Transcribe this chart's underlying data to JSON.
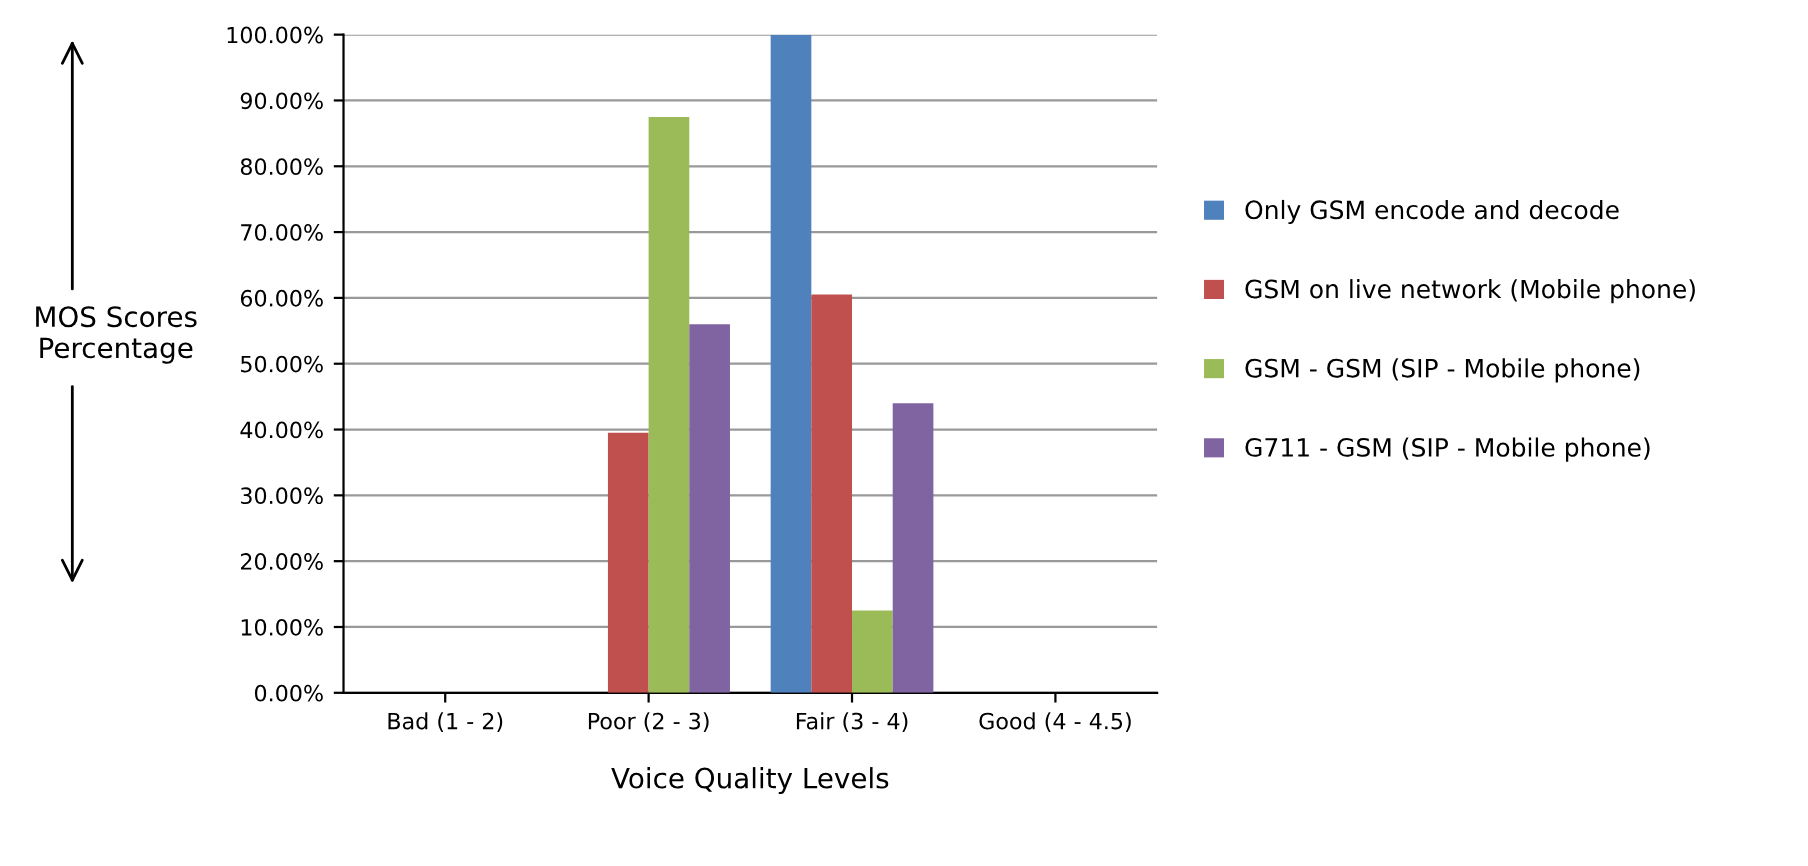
{
  "chart_data": {
    "type": "bar",
    "xlabel": "Voice Quality Levels",
    "ylabel": "MOS Scores Percentage",
    "categories": [
      "Bad (1 - 2)",
      "Poor (2 - 3)",
      "Fair (3 - 4)",
      "Good (4 - 4.5)"
    ],
    "series": [
      {
        "name": "Only GSM encode and decode",
        "color": "#4f81bd",
        "values": [
          0,
          0,
          100,
          0
        ]
      },
      {
        "name": "GSM on live network (Mobile phone)",
        "color": "#c0504d",
        "values": [
          0,
          39.5,
          60.5,
          0
        ]
      },
      {
        "name": "GSM - GSM (SIP - Mobile phone)",
        "color": "#9bbb59",
        "values": [
          0,
          87.5,
          12.5,
          0
        ]
      },
      {
        "name": "G711 - GSM (SIP - Mobile phone)",
        "color": "#8064a2",
        "values": [
          0,
          56,
          44,
          0
        ]
      }
    ],
    "ylim": [
      0,
      100
    ],
    "yticks": [
      {
        "value": 0,
        "label": "0.00%"
      },
      {
        "value": 10,
        "label": "10.00%"
      },
      {
        "value": 20,
        "label": "20.00%"
      },
      {
        "value": 30,
        "label": "30.00%"
      },
      {
        "value": 40,
        "label": "40.00%"
      },
      {
        "value": 50,
        "label": "50.00%"
      },
      {
        "value": 60,
        "label": "60.00%"
      },
      {
        "value": 70,
        "label": "70.00%"
      },
      {
        "value": 80,
        "label": "80.00%"
      },
      {
        "value": 90,
        "label": "90.00%"
      },
      {
        "value": 100,
        "label": "100.00%"
      }
    ],
    "grid": "y",
    "legend": "right"
  }
}
